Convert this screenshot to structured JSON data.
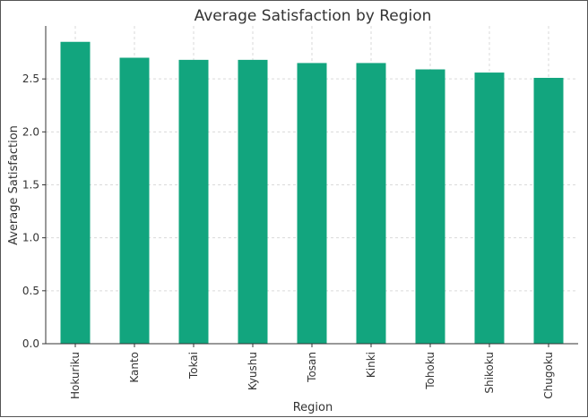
{
  "chart_data": {
    "type": "bar",
    "title": "Average Satisfaction by Region",
    "xlabel": "Region",
    "ylabel": "Average Satisfaction",
    "categories": [
      "Hokuriku",
      "Kanto",
      "Tokai",
      "Kyushu",
      "Tosan",
      "Kinki",
      "Tohoku",
      "Shikoku",
      "Chugoku"
    ],
    "values": [
      2.85,
      2.7,
      2.68,
      2.68,
      2.65,
      2.65,
      2.59,
      2.56,
      2.51
    ],
    "ylim": [
      0,
      3.0
    ],
    "yticks": [
      "0.0",
      "0.5",
      "1.0",
      "1.5",
      "2.0",
      "2.5"
    ],
    "grid": true,
    "legend": "none",
    "colors": {
      "bar": "#12a57e",
      "grid": "#d9d9d9",
      "axis": "#333333"
    }
  }
}
